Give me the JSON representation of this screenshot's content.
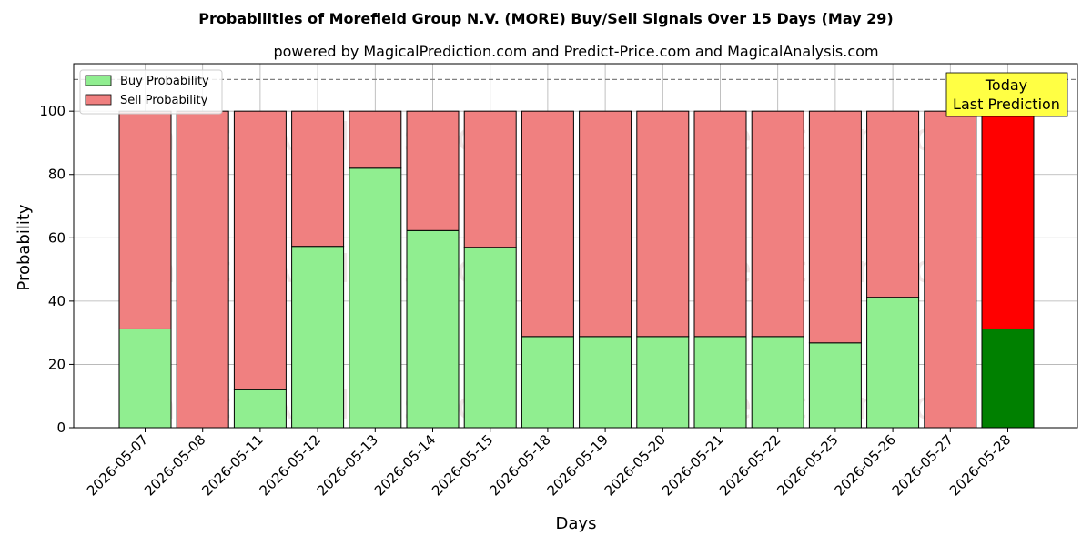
{
  "chart_data": {
    "type": "bar",
    "stacked": true,
    "title": "Probabilities of Morefield Group N.V. (MORE) Buy/Sell Signals Over 15 Days (May 29)",
    "subtitle": "powered by MagicalPrediction.com and Predict-Price.com and MagicalAnalysis.com",
    "xlabel": "Days",
    "ylabel": "Probability",
    "ylim": [
      0,
      115
    ],
    "yticks": [
      0,
      20,
      40,
      60,
      80,
      100
    ],
    "reference_line": 110,
    "grid": true,
    "legend_position": "top-left",
    "categories": [
      "2026-05-07",
      "2026-05-08",
      "2026-05-11",
      "2026-05-12",
      "2026-05-13",
      "2026-05-14",
      "2026-05-15",
      "2026-05-18",
      "2026-05-19",
      "2026-05-20",
      "2026-05-21",
      "2026-05-22",
      "2026-05-25",
      "2026-05-26",
      "2026-05-27",
      "2026-05-28"
    ],
    "series": [
      {
        "name": "Buy Probability",
        "color": "#90ee90",
        "highlight_color": "#008000",
        "values": [
          31.2,
          0,
          12.0,
          57.3,
          82.0,
          62.3,
          57.0,
          28.8,
          28.8,
          28.8,
          28.8,
          28.8,
          26.8,
          41.2,
          0,
          31.2
        ]
      },
      {
        "name": "Sell Probability",
        "color": "#f08080",
        "highlight_color": "#ff0000",
        "values": [
          68.8,
          100,
          88.0,
          42.7,
          18.0,
          37.7,
          43.0,
          71.2,
          71.2,
          71.2,
          71.2,
          71.2,
          73.2,
          58.8,
          100,
          68.8
        ]
      }
    ],
    "highlight_category": "2026-05-28",
    "annotation": {
      "line1": "Today",
      "line2": "Last Prediction"
    },
    "watermarks": [
      "MagicalAnalysis.com",
      "MagicalPrediction.com"
    ]
  }
}
